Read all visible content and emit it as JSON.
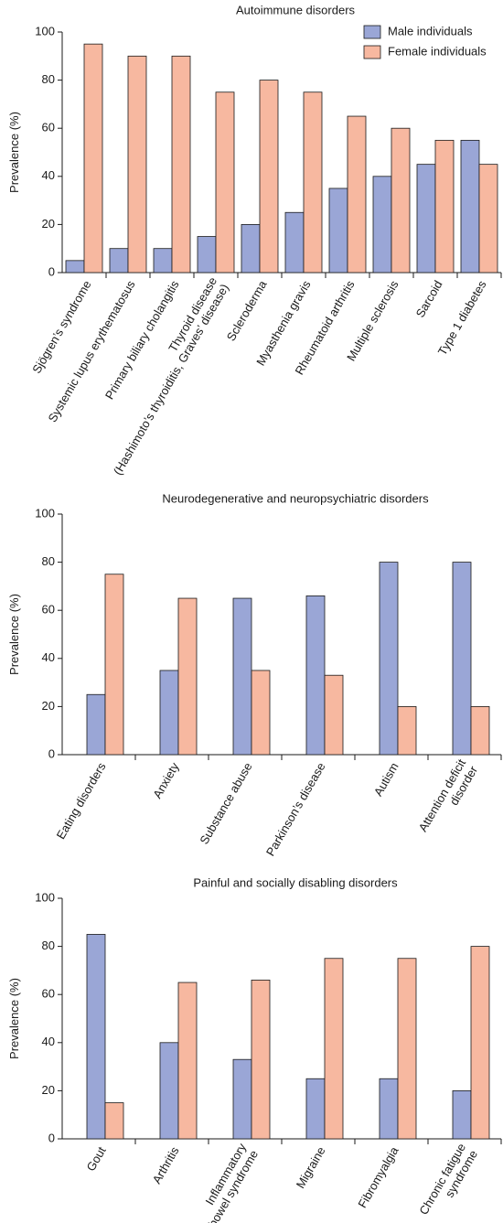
{
  "colors": {
    "male": "#9aa6d6",
    "female": "#f7b8a0"
  },
  "chart_data": [
    {
      "type": "bar",
      "title": "Autoimmune disorders",
      "ylabel": "Prevalence (%)",
      "ylim": [
        0,
        100
      ],
      "yticks": [
        0,
        20,
        40,
        60,
        80,
        100
      ],
      "legend": {
        "placement": "top-right"
      },
      "categories": [
        [
          "Sjögren’s syndrome"
        ],
        [
          "Systemic lupus erythematosus"
        ],
        [
          "Primary biliary cholangitis"
        ],
        [
          "Thyroid disease",
          "(Hashimoto’s thyroiditis, Graves’ disease)"
        ],
        [
          "Scleroderma"
        ],
        [
          "Myasthenia gravis"
        ],
        [
          "Rheumatoid arthritis"
        ],
        [
          "Multiple sclerosis"
        ],
        [
          "Sarcoid"
        ],
        [
          "Type 1 diabetes"
        ]
      ],
      "series": [
        {
          "name": "Male individuals",
          "values": [
            5,
            10,
            10,
            15,
            20,
            25,
            35,
            40,
            45,
            55
          ]
        },
        {
          "name": "Female individuals",
          "values": [
            95,
            90,
            90,
            75,
            80,
            75,
            65,
            60,
            55,
            45
          ]
        }
      ]
    },
    {
      "type": "bar",
      "title": "Neurodegenerative and neuropsychiatric disorders",
      "ylabel": "Prevalence (%)",
      "ylim": [
        0,
        100
      ],
      "yticks": [
        0,
        20,
        40,
        60,
        80,
        100
      ],
      "categories": [
        [
          "Eating disorders"
        ],
        [
          "Anxiety"
        ],
        [
          "Substance abuse"
        ],
        [
          "Parkinson’s disease"
        ],
        [
          "Autism"
        ],
        [
          "Attention deficit",
          "disorder"
        ]
      ],
      "series": [
        {
          "values": [
            25,
            35,
            65,
            66,
            80,
            80
          ]
        },
        {
          "values": [
            75,
            65,
            35,
            33,
            20,
            20
          ]
        }
      ]
    },
    {
      "type": "bar",
      "title": "Painful and socially disabling disorders",
      "ylabel": "Prevalence (%)",
      "ylim": [
        0,
        100
      ],
      "yticks": [
        0,
        20,
        40,
        60,
        80,
        100
      ],
      "categories": [
        [
          "Gout"
        ],
        [
          "Arthritis"
        ],
        [
          "Inflammatory",
          "bowel syndrome"
        ],
        [
          "Migraine"
        ],
        [
          "Fibromyalgia"
        ],
        [
          "Chronic fatigue",
          "syndrome"
        ]
      ],
      "series": [
        {
          "values": [
            85,
            40,
            33,
            25,
            25,
            20
          ]
        },
        {
          "values": [
            15,
            65,
            66,
            75,
            75,
            80
          ]
        }
      ]
    }
  ]
}
